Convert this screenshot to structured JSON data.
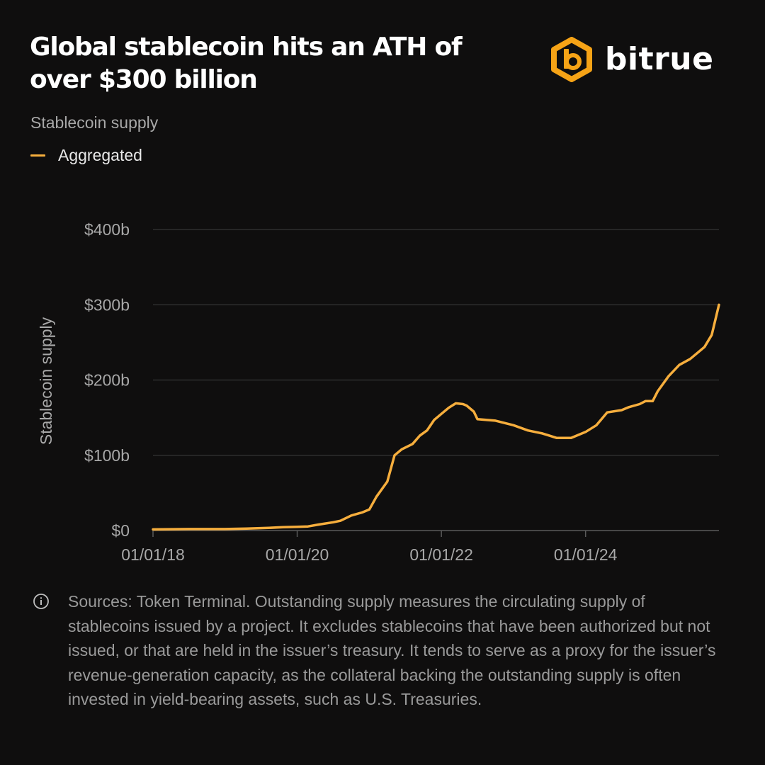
{
  "header": {
    "title": "Global stablecoin hits an ATH of over $300 billion",
    "brand_name": "bitrue"
  },
  "colors": {
    "background": "#0f0e0e",
    "line": "#f6ae3d",
    "brand_accent": "#f6a316",
    "grid": "#2e2e2e",
    "axis_text": "#a8a8a8"
  },
  "chart_data": {
    "type": "line",
    "title": "Stablecoin supply",
    "xlabel": "",
    "ylabel": "Stablecoin supply",
    "legend": [
      "Aggregated"
    ],
    "legend_position": "top-left",
    "grid": true,
    "xlim": [
      2018.0,
      2025.85
    ],
    "ylim": [
      0,
      400
    ],
    "y_ticks": [
      0,
      100,
      200,
      300,
      400
    ],
    "y_tick_labels": [
      "$0",
      "$100b",
      "$200b",
      "$300b",
      "$400b"
    ],
    "x_ticks": [
      2018.0,
      2020.0,
      2022.0,
      2024.0
    ],
    "x_tick_labels": [
      "01/01/18",
      "01/01/20",
      "01/01/22",
      "01/01/24"
    ],
    "series": [
      {
        "name": "Aggregated",
        "x": [
          2018.0,
          2018.5,
          2019.0,
          2019.3,
          2019.6,
          2019.8,
          2020.0,
          2020.15,
          2020.3,
          2020.5,
          2020.6,
          2020.75,
          2020.9,
          2021.0,
          2021.1,
          2021.25,
          2021.35,
          2021.45,
          2021.6,
          2021.7,
          2021.8,
          2021.9,
          2022.0,
          2022.1,
          2022.2,
          2022.3,
          2022.35,
          2022.45,
          2022.5,
          2022.75,
          2023.0,
          2023.2,
          2023.4,
          2023.5,
          2023.6,
          2023.8,
          2024.0,
          2024.15,
          2024.3,
          2024.5,
          2024.6,
          2024.75,
          2024.83,
          2024.93,
          2025.0,
          2025.15,
          2025.3,
          2025.45,
          2025.55,
          2025.65,
          2025.75,
          2025.85
        ],
        "values": [
          1.5,
          2,
          2,
          2.5,
          3.5,
          4.5,
          5,
          5.5,
          8,
          11,
          13,
          20,
          24,
          28,
          45,
          65,
          100,
          108,
          115,
          126,
          133,
          147,
          155,
          163,
          169,
          168,
          166,
          158,
          148,
          146,
          140,
          133,
          129,
          126,
          123,
          123,
          131,
          140,
          157,
          160,
          164,
          168,
          172,
          172,
          185,
          205,
          220,
          228,
          236,
          244,
          260,
          300
        ]
      }
    ]
  },
  "footer": {
    "source": "Sources: Token Terminal. Outstanding supply measures the circulating supply of stablecoins issued by a project. It excludes stablecoins that have been authorized but not issued, or that are held in the issuer’s treasury. It tends to serve as a proxy for the issuer’s revenue-generation capacity, as the collateral backing the outstanding supply is often invested in yield-bearing assets, such as U.S. Treasuries."
  },
  "icons": {
    "brand": "bitrue-hexagon-logo",
    "info": "info-circle-icon"
  }
}
